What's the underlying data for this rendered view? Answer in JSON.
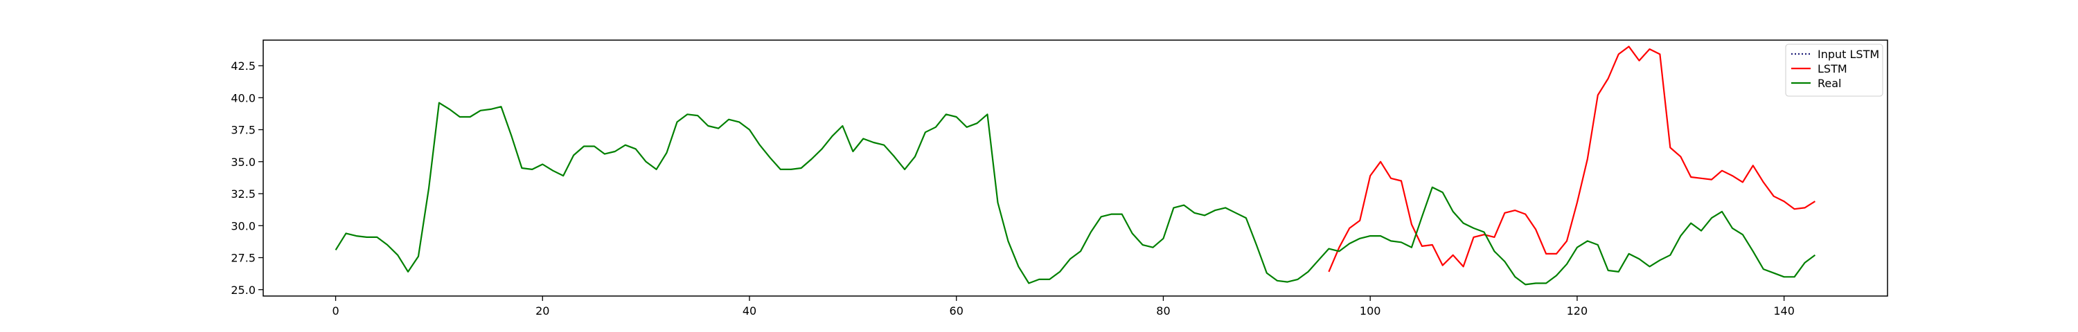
{
  "chart_data": {
    "type": "line",
    "title": "",
    "xlabel": "",
    "ylabel": "",
    "xlim": [
      -7,
      150
    ],
    "ylim": [
      24.5,
      44.5
    ],
    "xticks": [
      0,
      20,
      40,
      60,
      80,
      100,
      120,
      140
    ],
    "yticks": [
      25.0,
      27.5,
      30.0,
      32.5,
      35.0,
      37.5,
      40.0,
      42.5
    ],
    "xtick_labels": [
      "0",
      "20",
      "40",
      "60",
      "80",
      "100",
      "120",
      "140"
    ],
    "ytick_labels": [
      "25.0",
      "27.5",
      "30.0",
      "32.5",
      "35.0",
      "37.5",
      "40.0",
      "42.5"
    ],
    "grid": false,
    "legend_position": "top-right",
    "series": [
      {
        "name": "Input LSTM",
        "color": "#1f1f7a",
        "style": "dotted",
        "x": [],
        "y": []
      },
      {
        "name": "LSTM",
        "color": "#ff0000",
        "style": "solid",
        "x": [
          96,
          97,
          98,
          99,
          100,
          101,
          102,
          103,
          104,
          105,
          106,
          107,
          108,
          109,
          110,
          111,
          112,
          113,
          114,
          115,
          116,
          117,
          118,
          119,
          120,
          121,
          122,
          123,
          124,
          125,
          126,
          127,
          128,
          129,
          130,
          131,
          132,
          133,
          134,
          135,
          136,
          137,
          138,
          139,
          140,
          141,
          142,
          143
        ],
        "y": [
          26.4,
          28.3,
          29.8,
          30.4,
          33.9,
          35.0,
          33.7,
          33.5,
          30.1,
          28.4,
          28.5,
          26.9,
          27.7,
          26.8,
          29.1,
          29.3,
          29.1,
          31.0,
          31.2,
          30.9,
          29.7,
          27.8,
          27.8,
          28.8,
          31.8,
          35.2,
          40.2,
          41.5,
          43.4,
          44.0,
          42.9,
          43.8,
          43.4,
          36.1,
          35.4,
          33.8,
          33.7,
          33.6,
          34.3,
          33.9,
          33.4,
          34.7,
          33.4,
          32.3,
          31.9,
          31.3,
          31.4,
          31.9
        ]
      },
      {
        "name": "Real",
        "color": "#008000",
        "style": "solid",
        "x": [
          0,
          1,
          2,
          3,
          4,
          5,
          6,
          7,
          8,
          9,
          10,
          11,
          12,
          13,
          14,
          15,
          16,
          17,
          18,
          19,
          20,
          21,
          22,
          23,
          24,
          25,
          26,
          27,
          28,
          29,
          30,
          31,
          32,
          33,
          34,
          35,
          36,
          37,
          38,
          39,
          40,
          41,
          42,
          43,
          44,
          45,
          46,
          47,
          48,
          49,
          50,
          51,
          52,
          53,
          54,
          55,
          56,
          57,
          58,
          59,
          60,
          61,
          62,
          63,
          64,
          65,
          66,
          67,
          68,
          69,
          70,
          71,
          72,
          73,
          74,
          75,
          76,
          77,
          78,
          79,
          80,
          81,
          82,
          83,
          84,
          85,
          86,
          87,
          88,
          89,
          90,
          91,
          92,
          93,
          94,
          95,
          96,
          97,
          98,
          99,
          100,
          101,
          102,
          103,
          104,
          105,
          106,
          107,
          108,
          109,
          110,
          111,
          112,
          113,
          114,
          115,
          116,
          117,
          118,
          119,
          120,
          121,
          122,
          123,
          124,
          125,
          126,
          127,
          128,
          129,
          130,
          131,
          132,
          133,
          134,
          135,
          136,
          137,
          138,
          139,
          140,
          141,
          142,
          143
        ],
        "y": [
          28.1,
          29.4,
          29.2,
          29.1,
          29.1,
          28.5,
          27.7,
          26.4,
          27.6,
          32.9,
          39.6,
          39.1,
          38.5,
          38.5,
          39.0,
          39.1,
          39.3,
          37.0,
          34.5,
          34.4,
          34.8,
          34.3,
          33.9,
          35.5,
          36.2,
          36.2,
          35.6,
          35.8,
          36.3,
          36.0,
          35.0,
          34.4,
          35.7,
          38.1,
          38.7,
          38.6,
          37.8,
          37.6,
          38.3,
          38.1,
          37.5,
          36.3,
          35.3,
          34.4,
          34.4,
          34.5,
          35.2,
          36.0,
          37.0,
          37.8,
          35.8,
          36.8,
          36.5,
          36.3,
          35.4,
          34.4,
          35.4,
          37.3,
          37.7,
          38.7,
          38.5,
          37.7,
          38.0,
          38.7,
          31.8,
          28.8,
          26.8,
          25.5,
          25.8,
          25.8,
          26.4,
          27.4,
          28.0,
          29.5,
          30.7,
          30.9,
          30.9,
          29.4,
          28.5,
          28.3,
          29.0,
          31.4,
          31.6,
          31.0,
          30.8,
          31.2,
          31.4,
          31.0,
          30.6,
          28.5,
          26.3,
          25.7,
          25.6,
          25.8,
          26.4,
          27.3,
          28.2,
          28.0,
          28.6,
          29.0,
          29.2,
          29.2,
          28.8,
          28.7,
          28.3,
          30.7,
          33.0,
          32.6,
          31.1,
          30.2,
          29.8,
          29.5,
          28.0,
          27.2,
          26.0,
          25.4,
          25.5,
          25.5,
          26.1,
          27.0,
          28.3,
          28.8,
          28.5,
          26.5,
          26.4,
          27.8,
          27.4,
          26.8,
          27.3,
          27.7,
          29.2,
          30.2,
          29.6,
          30.6,
          31.1,
          29.8,
          29.3,
          28.0,
          26.6,
          26.3,
          26.0,
          26.0,
          27.1,
          27.7
        ]
      }
    ]
  }
}
